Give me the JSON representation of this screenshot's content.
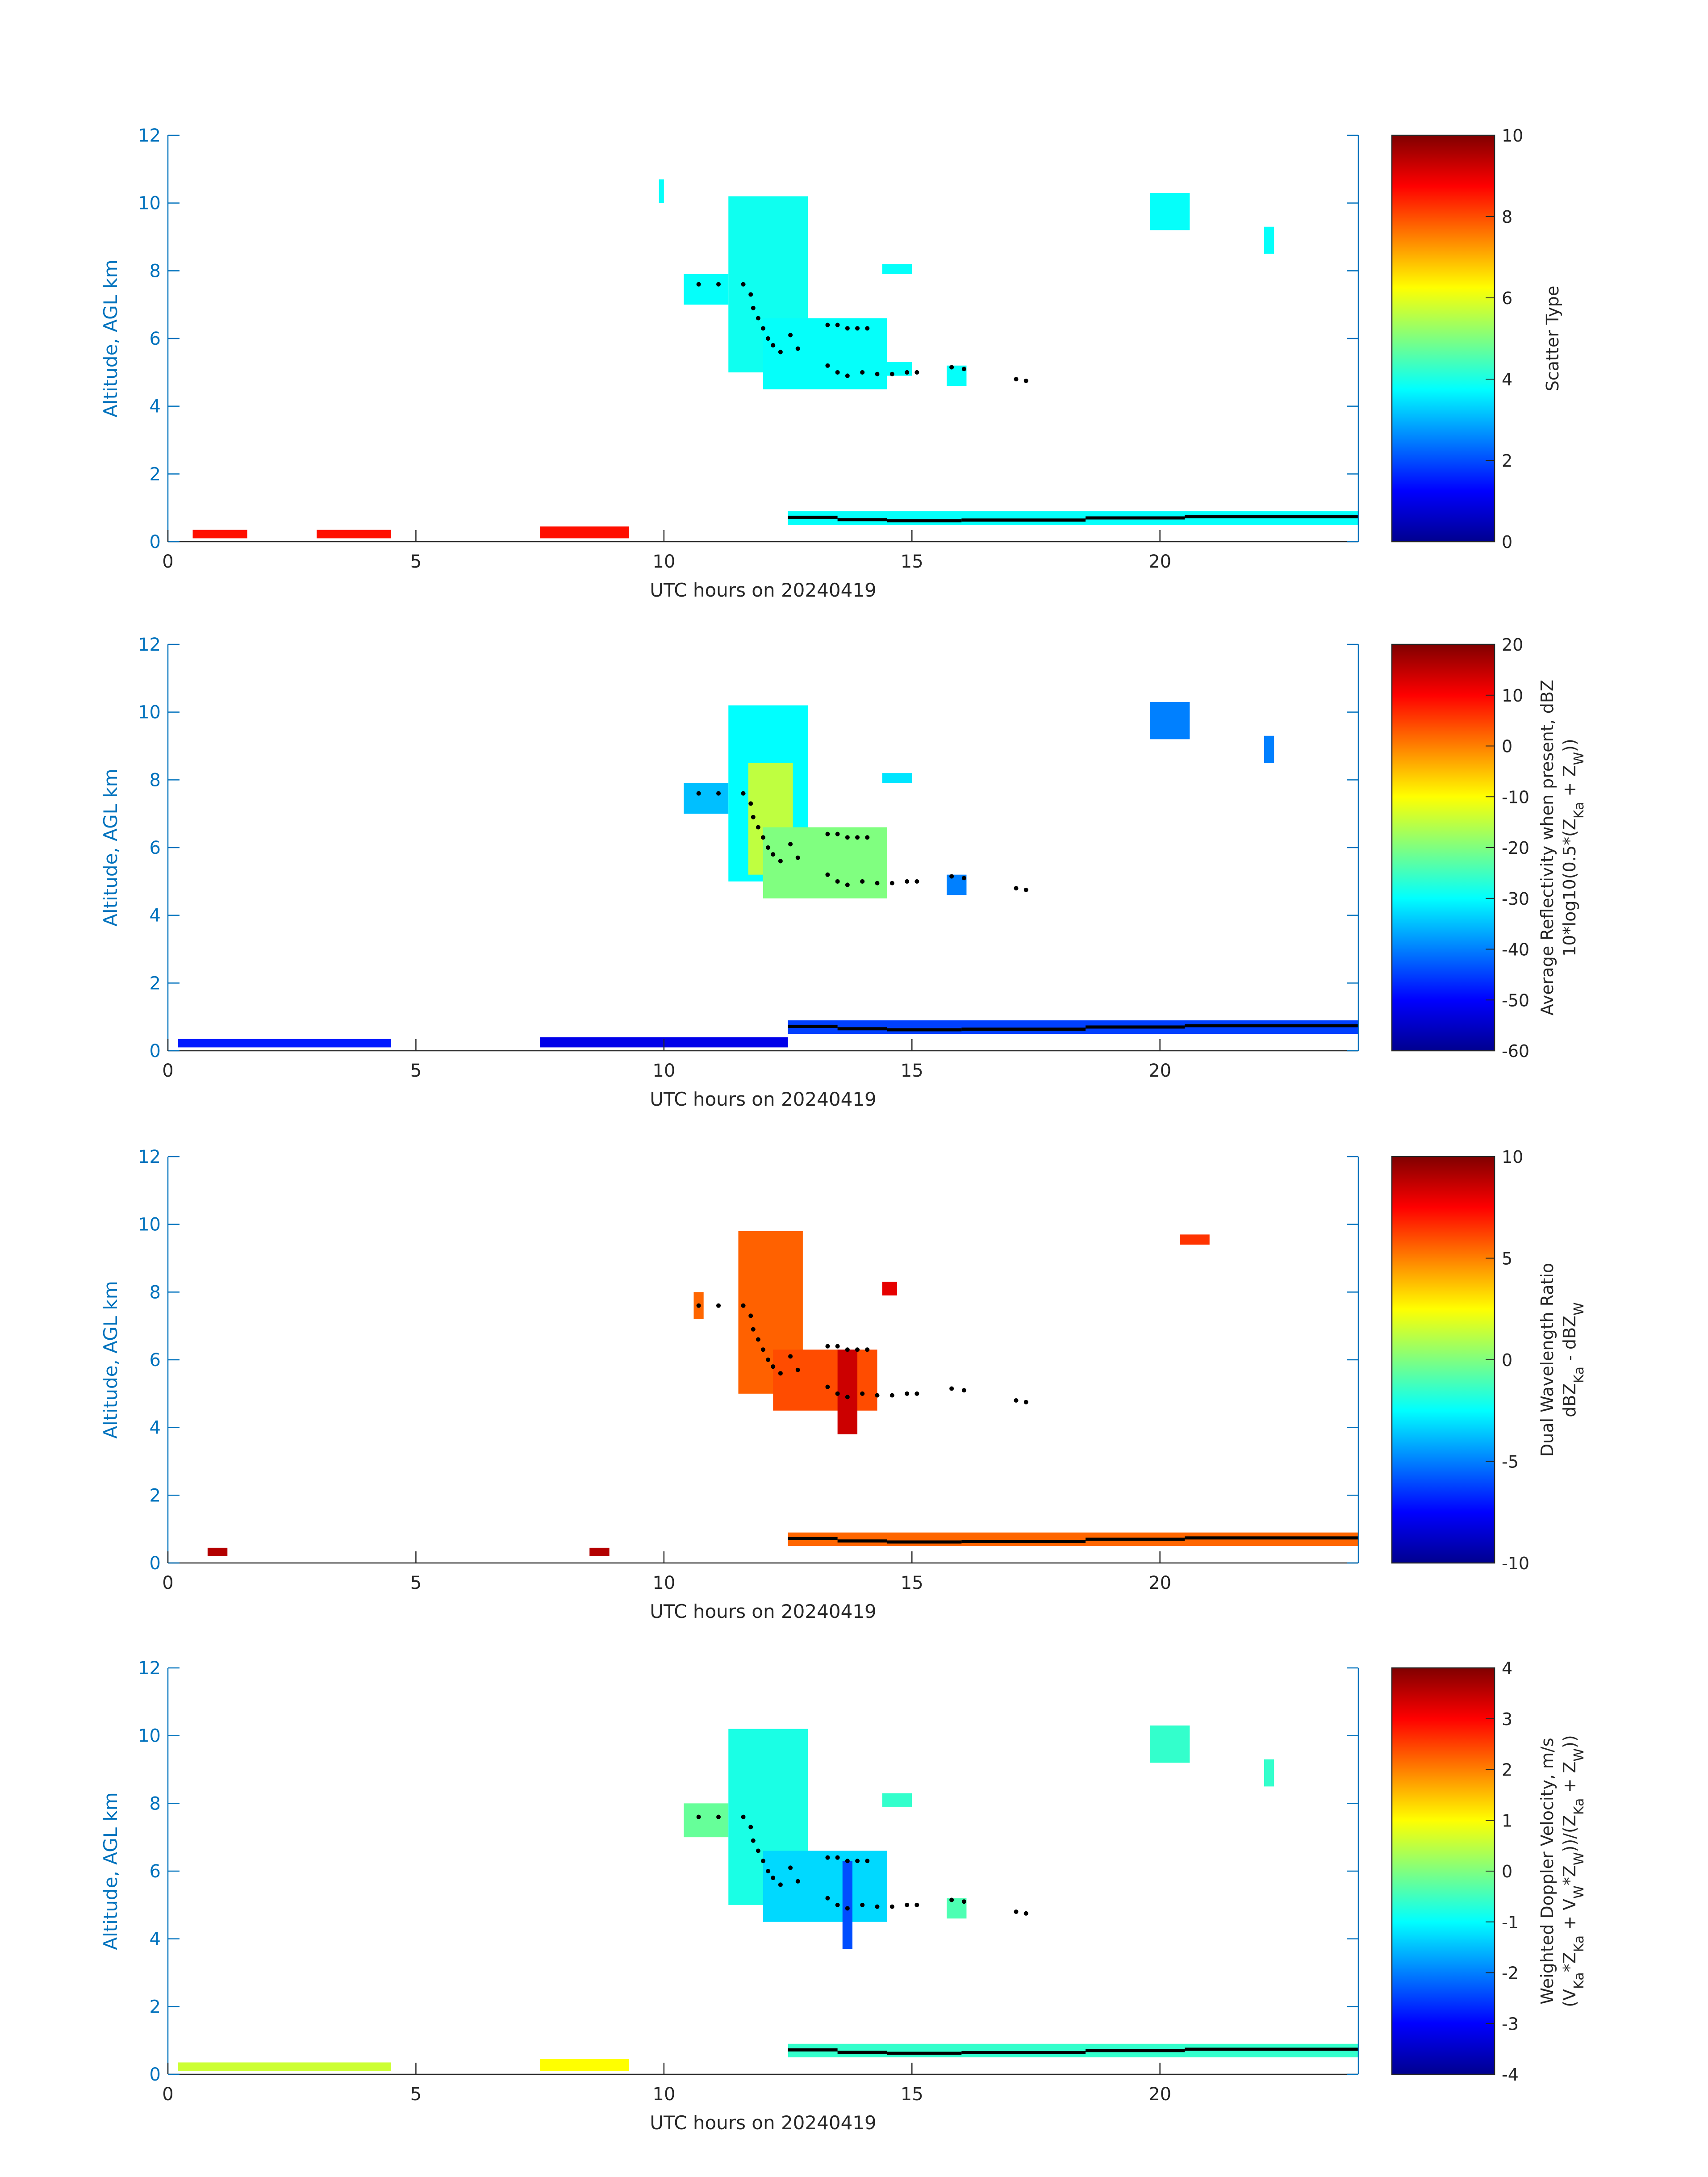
{
  "figure": {
    "date": "20240419",
    "colors": {
      "axis": "#0072BD",
      "text": "#262626",
      "cloud_base": "#000000"
    }
  },
  "chart_data": [
    {
      "type": "heatmap",
      "field": "scatter_type",
      "xlabel": "UTC hours on 20240419",
      "ylabel": "Altitude, AGL km",
      "xlim": [
        0,
        24
      ],
      "ylim": [
        0,
        12
      ],
      "xticks": [
        0,
        5,
        10,
        15,
        20
      ],
      "yticks": [
        0,
        2,
        4,
        6,
        8,
        10,
        12
      ],
      "colorbar": {
        "label_lines": [
          "Scatter Type"
        ],
        "range": [
          0,
          10
        ],
        "ticks": [
          0,
          2,
          4,
          6,
          8,
          10
        ],
        "colormap": "jet"
      },
      "echoes": [
        {
          "t0": 10.4,
          "t1": 11.3,
          "z0": 7.0,
          "z1": 7.9,
          "value": 3.8
        },
        {
          "t0": 11.3,
          "t1": 12.9,
          "z0": 5.0,
          "z1": 10.2,
          "value": 3.9
        },
        {
          "t0": 12.0,
          "t1": 14.5,
          "z0": 4.5,
          "z1": 6.6,
          "value": 3.8
        },
        {
          "t0": 14.4,
          "t1": 15.0,
          "z0": 4.9,
          "z1": 5.3,
          "value": 3.8
        },
        {
          "t0": 14.4,
          "t1": 15.0,
          "z0": 7.9,
          "z1": 8.2,
          "value": 3.8
        },
        {
          "t0": 15.7,
          "t1": 16.1,
          "z0": 4.6,
          "z1": 5.2,
          "value": 3.8
        },
        {
          "t0": 19.8,
          "t1": 20.6,
          "z0": 9.2,
          "z1": 10.3,
          "value": 3.8
        },
        {
          "t0": 22.1,
          "t1": 22.3,
          "z0": 8.5,
          "z1": 9.3,
          "value": 3.8
        },
        {
          "t0": 9.9,
          "t1": 10.0,
          "z0": 10.0,
          "z1": 10.7,
          "value": 3.8
        },
        {
          "t0": 12.5,
          "t1": 24.0,
          "z0": 0.5,
          "z1": 0.9,
          "value": 3.8
        },
        {
          "t0": 0.5,
          "t1": 1.6,
          "z0": 0.1,
          "z1": 0.35,
          "value": 8.6
        },
        {
          "t0": 3.0,
          "t1": 4.5,
          "z0": 0.1,
          "z1": 0.35,
          "value": 8.6
        },
        {
          "t0": 7.5,
          "t1": 9.3,
          "z0": 0.1,
          "z1": 0.45,
          "value": 8.6
        }
      ]
    },
    {
      "type": "heatmap",
      "field": "average_reflectivity",
      "xlabel": "UTC hours on 20240419",
      "ylabel": "Altitude, AGL km",
      "xlim": [
        0,
        24
      ],
      "ylim": [
        0,
        12
      ],
      "xticks": [
        0,
        5,
        10,
        15,
        20
      ],
      "yticks": [
        0,
        2,
        4,
        6,
        8,
        10,
        12
      ],
      "colorbar": {
        "label_lines": [
          "Average Reflectivity when present, dBZ",
          "10*log10(0.5*(Z_Ka + Z_W))"
        ],
        "range": [
          -60,
          20
        ],
        "ticks": [
          -60,
          -50,
          -40,
          -30,
          -20,
          -10,
          0,
          10,
          20
        ],
        "colormap": "jet"
      },
      "echoes": [
        {
          "t0": 10.4,
          "t1": 11.3,
          "z0": 7.0,
          "z1": 7.9,
          "value": -35
        },
        {
          "t0": 11.3,
          "t1": 12.9,
          "z0": 5.0,
          "z1": 10.2,
          "value": -30
        },
        {
          "t0": 11.7,
          "t1": 12.6,
          "z0": 5.2,
          "z1": 8.5,
          "value": -15
        },
        {
          "t0": 12.0,
          "t1": 14.5,
          "z0": 4.5,
          "z1": 6.6,
          "value": -20
        },
        {
          "t0": 14.4,
          "t1": 15.0,
          "z0": 7.9,
          "z1": 8.2,
          "value": -32
        },
        {
          "t0": 15.7,
          "t1": 16.1,
          "z0": 4.6,
          "z1": 5.2,
          "value": -40
        },
        {
          "t0": 19.8,
          "t1": 20.6,
          "z0": 9.2,
          "z1": 10.3,
          "value": -40
        },
        {
          "t0": 22.1,
          "t1": 22.3,
          "z0": 8.5,
          "z1": 9.3,
          "value": -40
        },
        {
          "t0": 12.5,
          "t1": 24.0,
          "z0": 0.5,
          "z1": 0.9,
          "value": -45
        },
        {
          "t0": 0.2,
          "t1": 4.5,
          "z0": 0.1,
          "z1": 0.35,
          "value": -48
        },
        {
          "t0": 7.5,
          "t1": 12.5,
          "z0": 0.1,
          "z1": 0.4,
          "value": -52
        }
      ]
    },
    {
      "type": "heatmap",
      "field": "dual_wavelength_ratio",
      "xlabel": "UTC hours on 20240419",
      "ylabel": "Altitude, AGL km",
      "xlim": [
        0,
        24
      ],
      "ylim": [
        0,
        12
      ],
      "xticks": [
        0,
        5,
        10,
        15,
        20
      ],
      "yticks": [
        0,
        2,
        4,
        6,
        8,
        10,
        12
      ],
      "colorbar": {
        "label_lines": [
          "Dual Wavelength Ratio",
          "dBZ_Ka - dBZ_W"
        ],
        "range": [
          -10,
          10
        ],
        "ticks": [
          -10,
          -5,
          0,
          5,
          10
        ],
        "colormap": "jet"
      },
      "echoes": [
        {
          "t0": 10.6,
          "t1": 10.8,
          "z0": 7.2,
          "z1": 8.0,
          "value": 5.5
        },
        {
          "t0": 11.5,
          "t1": 12.8,
          "z0": 5.0,
          "z1": 9.8,
          "value": 5.6
        },
        {
          "t0": 12.2,
          "t1": 14.3,
          "z0": 4.5,
          "z1": 6.3,
          "value": 6.0
        },
        {
          "t0": 13.5,
          "t1": 13.9,
          "z0": 3.8,
          "z1": 6.3,
          "value": 8.5
        },
        {
          "t0": 14.4,
          "t1": 14.7,
          "z0": 7.9,
          "z1": 8.3,
          "value": 8.0
        },
        {
          "t0": 20.4,
          "t1": 21.0,
          "z0": 9.4,
          "z1": 9.7,
          "value": 6.5
        },
        {
          "t0": 12.5,
          "t1": 24.0,
          "z0": 0.5,
          "z1": 0.9,
          "value": 5.5
        },
        {
          "t0": 0.8,
          "t1": 1.2,
          "z0": 0.2,
          "z1": 0.45,
          "value": 9.0
        },
        {
          "t0": 8.5,
          "t1": 8.9,
          "z0": 0.2,
          "z1": 0.45,
          "value": 9.0
        }
      ]
    },
    {
      "type": "heatmap",
      "field": "weighted_doppler_velocity",
      "xlabel": "UTC hours on 20240419",
      "ylabel": "Altitude, AGL km",
      "xlim": [
        0,
        24
      ],
      "ylim": [
        0,
        12
      ],
      "xticks": [
        0,
        5,
        10,
        15,
        20
      ],
      "yticks": [
        0,
        2,
        4,
        6,
        8,
        10,
        12
      ],
      "colorbar": {
        "label_lines": [
          "Weighted Doppler Velocity, m/s",
          "(V_Ka*Z_Ka + V_W*Z_W))/(Z_Ka + Z_W))"
        ],
        "range": [
          -4,
          4
        ],
        "ticks": [
          -4,
          -3,
          -2,
          -1,
          0,
          1,
          2,
          3,
          4
        ],
        "colormap": "jet"
      },
      "echoes": [
        {
          "t0": 10.4,
          "t1": 11.3,
          "z0": 7.0,
          "z1": 8.0,
          "value": -0.2
        },
        {
          "t0": 11.3,
          "t1": 12.9,
          "z0": 5.0,
          "z1": 10.2,
          "value": -0.8
        },
        {
          "t0": 12.0,
          "t1": 14.5,
          "z0": 4.5,
          "z1": 6.6,
          "value": -1.3
        },
        {
          "t0": 13.6,
          "t1": 13.8,
          "z0": 3.7,
          "z1": 6.3,
          "value": -2.4
        },
        {
          "t0": 14.4,
          "t1": 15.0,
          "z0": 7.9,
          "z1": 8.3,
          "value": -0.6
        },
        {
          "t0": 15.7,
          "t1": 16.1,
          "z0": 4.6,
          "z1": 5.2,
          "value": -0.4
        },
        {
          "t0": 19.8,
          "t1": 20.6,
          "z0": 9.2,
          "z1": 10.3,
          "value": -0.6
        },
        {
          "t0": 22.1,
          "t1": 22.3,
          "z0": 8.5,
          "z1": 9.3,
          "value": -0.6
        },
        {
          "t0": 12.5,
          "t1": 24.0,
          "z0": 0.5,
          "z1": 0.9,
          "value": -0.6
        },
        {
          "t0": 0.2,
          "t1": 4.5,
          "z0": 0.1,
          "z1": 0.35,
          "value": 0.6
        },
        {
          "t0": 7.5,
          "t1": 9.3,
          "z0": 0.1,
          "z1": 0.45,
          "value": 1.0
        }
      ]
    }
  ],
  "cloud_base_points": [
    [
      10.7,
      7.6
    ],
    [
      11.1,
      7.6
    ],
    [
      11.6,
      7.6
    ],
    [
      11.75,
      7.3
    ],
    [
      11.8,
      6.9
    ],
    [
      11.9,
      6.6
    ],
    [
      12.0,
      6.3
    ],
    [
      12.1,
      6.0
    ],
    [
      12.2,
      5.8
    ],
    [
      12.35,
      5.6
    ],
    [
      12.55,
      6.1
    ],
    [
      12.7,
      5.7
    ],
    [
      13.3,
      6.4
    ],
    [
      13.5,
      6.4
    ],
    [
      13.7,
      6.3
    ],
    [
      13.9,
      6.3
    ],
    [
      14.1,
      6.3
    ],
    [
      13.3,
      5.2
    ],
    [
      13.5,
      5.0
    ],
    [
      13.7,
      4.9
    ],
    [
      14.0,
      5.0
    ],
    [
      14.3,
      4.95
    ],
    [
      14.6,
      4.95
    ],
    [
      14.9,
      5.0
    ],
    [
      15.1,
      5.0
    ],
    [
      15.8,
      5.15
    ],
    [
      16.05,
      5.1
    ],
    [
      17.1,
      4.8
    ],
    [
      17.3,
      4.75
    ]
  ],
  "cloud_base_low_segments": [
    {
      "t0": 12.5,
      "t1": 13.5,
      "z": 0.72
    },
    {
      "t0": 13.5,
      "t1": 14.5,
      "z": 0.65
    },
    {
      "t0": 14.5,
      "t1": 16.0,
      "z": 0.62
    },
    {
      "t0": 16.0,
      "t1": 18.5,
      "z": 0.64
    },
    {
      "t0": 18.5,
      "t1": 20.5,
      "z": 0.7
    },
    {
      "t0": 20.5,
      "t1": 24.0,
      "z": 0.74
    }
  ]
}
